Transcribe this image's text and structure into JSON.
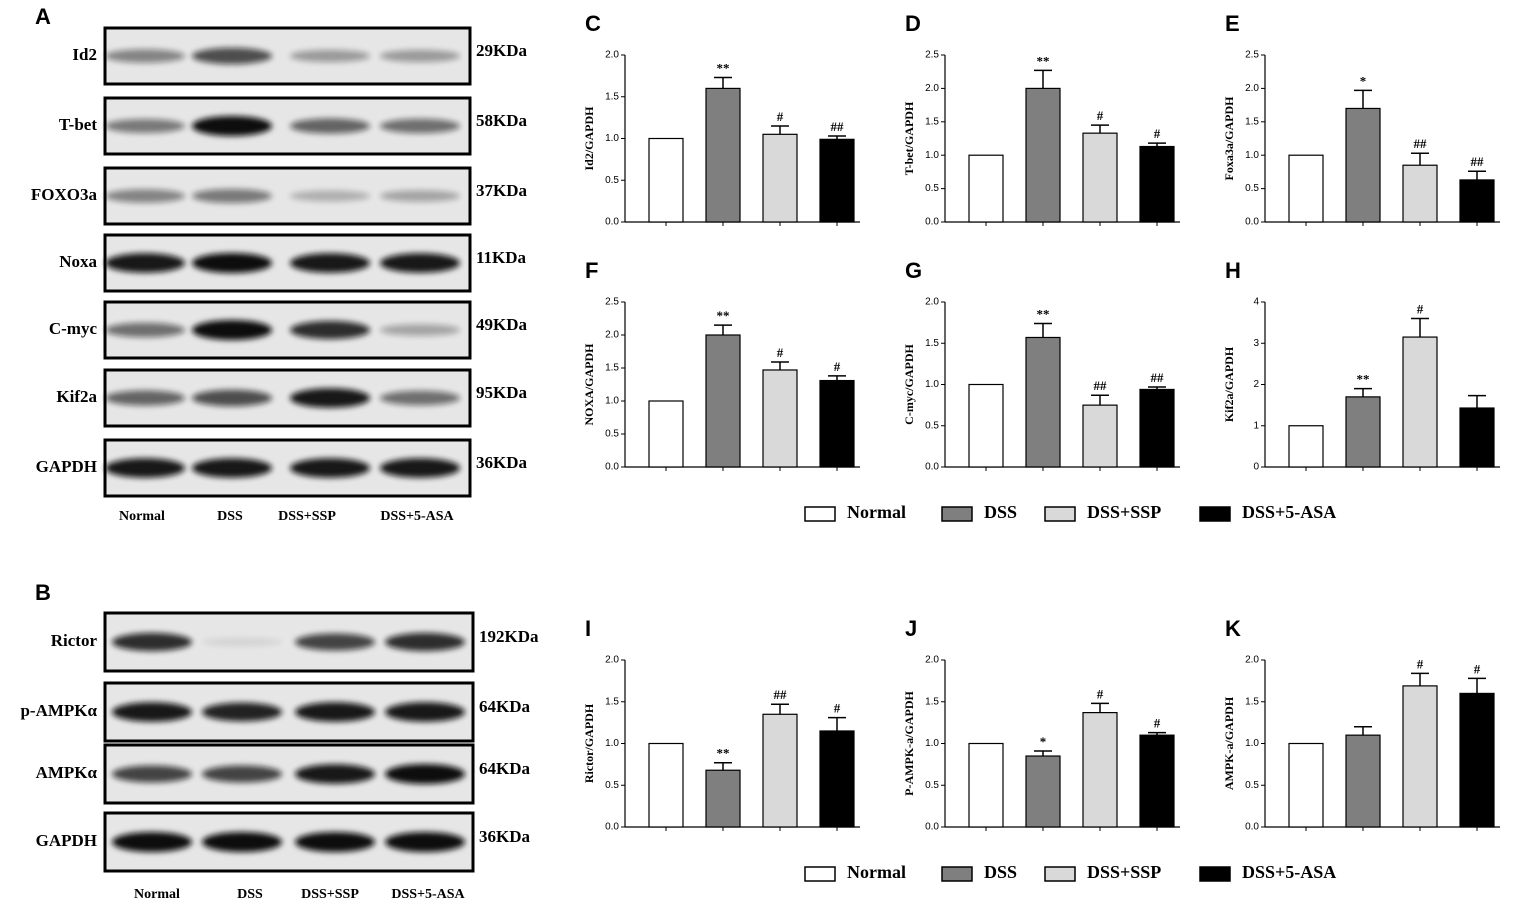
{
  "blots": [
    {
      "letter": "A",
      "rows": [
        {
          "protein": "Id2",
          "size": "29KDa"
        },
        {
          "protein": "T-bet",
          "size": "58KDa"
        },
        {
          "protein": "FOXO3a",
          "size": "37KDa"
        },
        {
          "protein": "Noxa",
          "size": "11KDa"
        },
        {
          "protein": "C-myc",
          "size": "49KDa"
        },
        {
          "protein": "Kif2a",
          "size": "95KDa"
        },
        {
          "protein": "GAPDH",
          "size": "36KDa"
        }
      ],
      "lanes": [
        "Normal",
        "DSS",
        "DSS+SSP",
        "DSS+5-ASA"
      ]
    },
    {
      "letter": "B",
      "rows": [
        {
          "protein": "Rictor",
          "size": "192KDa"
        },
        {
          "protein": "p-AMPKα",
          "size": "64KDa"
        },
        {
          "protein": "AMPKα",
          "size": "64KDa"
        },
        {
          "protein": "GAPDH",
          "size": "36KDa"
        }
      ],
      "lanes": [
        "Normal",
        "DSS",
        "DSS+SSP",
        "DSS+5-ASA"
      ]
    }
  ],
  "legends": [
    {
      "items": [
        {
          "name": "Normal",
          "color": "#ffffff"
        },
        {
          "name": "DSS",
          "color": "#7f7f7f"
        },
        {
          "name": "DSS+SSP",
          "color": "#d9d9d9"
        },
        {
          "name": "DSS+5-ASA",
          "color": "#000000"
        }
      ]
    },
    {
      "items": [
        {
          "name": "Normal",
          "color": "#ffffff"
        },
        {
          "name": "DSS",
          "color": "#7f7f7f"
        },
        {
          "name": "DSS+SSP",
          "color": "#d9d9d9"
        },
        {
          "name": "DSS+5-ASA",
          "color": "#000000"
        }
      ]
    }
  ],
  "chart_data": [
    {
      "type": "bar",
      "letter": "C",
      "y_label": "Id2/GAPDH",
      "values": [
        1.0,
        1.6,
        1.05,
        0.99
      ],
      "errors": [
        null,
        0.13,
        0.1,
        0.04
      ],
      "markers": [
        null,
        "**",
        "#",
        "##"
      ],
      "ylim": [
        0,
        2
      ],
      "yticks": [
        {
          "value": 0,
          "label": "0.0"
        },
        {
          "value": 0.5,
          "label": "0.5"
        },
        {
          "value": 1,
          "label": "1.0"
        },
        {
          "value": 1.5,
          "label": "1.5"
        },
        {
          "value": 2,
          "label": "2.0"
        }
      ]
    },
    {
      "type": "bar",
      "letter": "D",
      "y_label": "T-bet/GAPDH",
      "values": [
        1.0,
        2.0,
        1.33,
        1.13
      ],
      "errors": [
        null,
        0.27,
        0.12,
        0.05
      ],
      "markers": [
        null,
        "**",
        "#",
        "#"
      ],
      "ylim": [
        0,
        2.5
      ],
      "yticks": [
        {
          "value": 0,
          "label": "0.0"
        },
        {
          "value": 0.5,
          "label": "0.5"
        },
        {
          "value": 1,
          "label": "1.0"
        },
        {
          "value": 1.5,
          "label": "1.5"
        },
        {
          "value": 2,
          "label": "2.0"
        },
        {
          "value": 2.5,
          "label": "2.5"
        }
      ]
    },
    {
      "type": "bar",
      "letter": "E",
      "y_label": "Foxa3a/GAPDH",
      "values": [
        1.0,
        1.7,
        0.85,
        0.63
      ],
      "errors": [
        null,
        0.27,
        0.18,
        0.13
      ],
      "markers": [
        null,
        "*",
        "##",
        "##"
      ],
      "ylim": [
        0,
        2.5
      ],
      "yticks": [
        {
          "value": 0,
          "label": "0.0"
        },
        {
          "value": 0.5,
          "label": "0.5"
        },
        {
          "value": 1,
          "label": "1.0"
        },
        {
          "value": 1.5,
          "label": "1.5"
        },
        {
          "value": 2,
          "label": "2.0"
        },
        {
          "value": 2.5,
          "label": "2.5"
        }
      ]
    },
    {
      "type": "bar",
      "letter": "F",
      "y_label": "NOXA/GAPDH",
      "values": [
        1.0,
        2.0,
        1.47,
        1.31
      ],
      "errors": [
        null,
        0.15,
        0.12,
        0.07
      ],
      "markers": [
        null,
        "**",
        "#",
        "#"
      ],
      "ylim": [
        0,
        2.5
      ],
      "yticks": [
        {
          "value": 0,
          "label": "0.0"
        },
        {
          "value": 0.5,
          "label": "0.5"
        },
        {
          "value": 1,
          "label": "1.0"
        },
        {
          "value": 1.5,
          "label": "1.5"
        },
        {
          "value": 2,
          "label": "2.0"
        },
        {
          "value": 2.5,
          "label": "2.5"
        }
      ]
    },
    {
      "type": "bar",
      "letter": "G",
      "y_label": "C-myc/GAPDH",
      "values": [
        1.0,
        1.57,
        0.75,
        0.94
      ],
      "errors": [
        null,
        0.17,
        0.12,
        0.03
      ],
      "markers": [
        null,
        "**",
        "##",
        "##"
      ],
      "ylim": [
        0,
        2
      ],
      "yticks": [
        {
          "value": 0,
          "label": "0.0"
        },
        {
          "value": 0.5,
          "label": "0.5"
        },
        {
          "value": 1,
          "label": "1.0"
        },
        {
          "value": 1.5,
          "label": "1.5"
        },
        {
          "value": 2,
          "label": "2.0"
        }
      ]
    },
    {
      "type": "bar",
      "letter": "H",
      "y_label": "Kif2a/GAPDH",
      "values": [
        1.0,
        1.7,
        3.15,
        1.43
      ],
      "errors": [
        null,
        0.2,
        0.45,
        0.3
      ],
      "markers": [
        null,
        "**",
        "#",
        null
      ],
      "ylim": [
        0,
        4
      ],
      "yticks": [
        0,
        1,
        2,
        3,
        4
      ]
    },
    {
      "type": "bar",
      "letter": "I",
      "y_label": "Rictor/GAPDH",
      "values": [
        1.0,
        0.68,
        1.35,
        1.15
      ],
      "errors": [
        null,
        0.09,
        0.12,
        0.16
      ],
      "markers": [
        null,
        "**",
        "##",
        "#"
      ],
      "ylim": [
        0,
        2
      ],
      "yticks": [
        {
          "value": 0,
          "label": "0.0"
        },
        {
          "value": 0.5,
          "label": "0.5"
        },
        {
          "value": 1,
          "label": "1.0"
        },
        {
          "value": 1.5,
          "label": "1.5"
        },
        {
          "value": 2,
          "label": "2.0"
        }
      ]
    },
    {
      "type": "bar",
      "letter": "J",
      "y_label": "P-AMPK-a/GAPDH",
      "values": [
        1.0,
        0.85,
        1.37,
        1.1
      ],
      "errors": [
        null,
        0.06,
        0.11,
        0.03
      ],
      "markers": [
        null,
        "*",
        "#",
        "#"
      ],
      "ylim": [
        0,
        2
      ],
      "yticks": [
        {
          "value": 0,
          "label": "0.0"
        },
        {
          "value": 0.5,
          "label": "0.5"
        },
        {
          "value": 1,
          "label": "1.0"
        },
        {
          "value": 1.5,
          "label": "1.5"
        },
        {
          "value": 2,
          "label": "2.0"
        }
      ]
    },
    {
      "type": "bar",
      "letter": "K",
      "y_label": "AMPK-a/GAPDH",
      "values": [
        1.0,
        1.1,
        1.69,
        1.6
      ],
      "errors": [
        null,
        0.1,
        0.15,
        0.18
      ],
      "markers": [
        null,
        null,
        "#",
        "#"
      ],
      "ylim": [
        0,
        2
      ],
      "yticks": [
        {
          "value": 0,
          "label": "0.0"
        },
        {
          "value": 0.5,
          "label": "0.5"
        },
        {
          "value": 1,
          "label": "1.0"
        },
        {
          "value": 1.5,
          "label": "1.5"
        },
        {
          "value": 2,
          "label": "2.0"
        }
      ]
    }
  ]
}
